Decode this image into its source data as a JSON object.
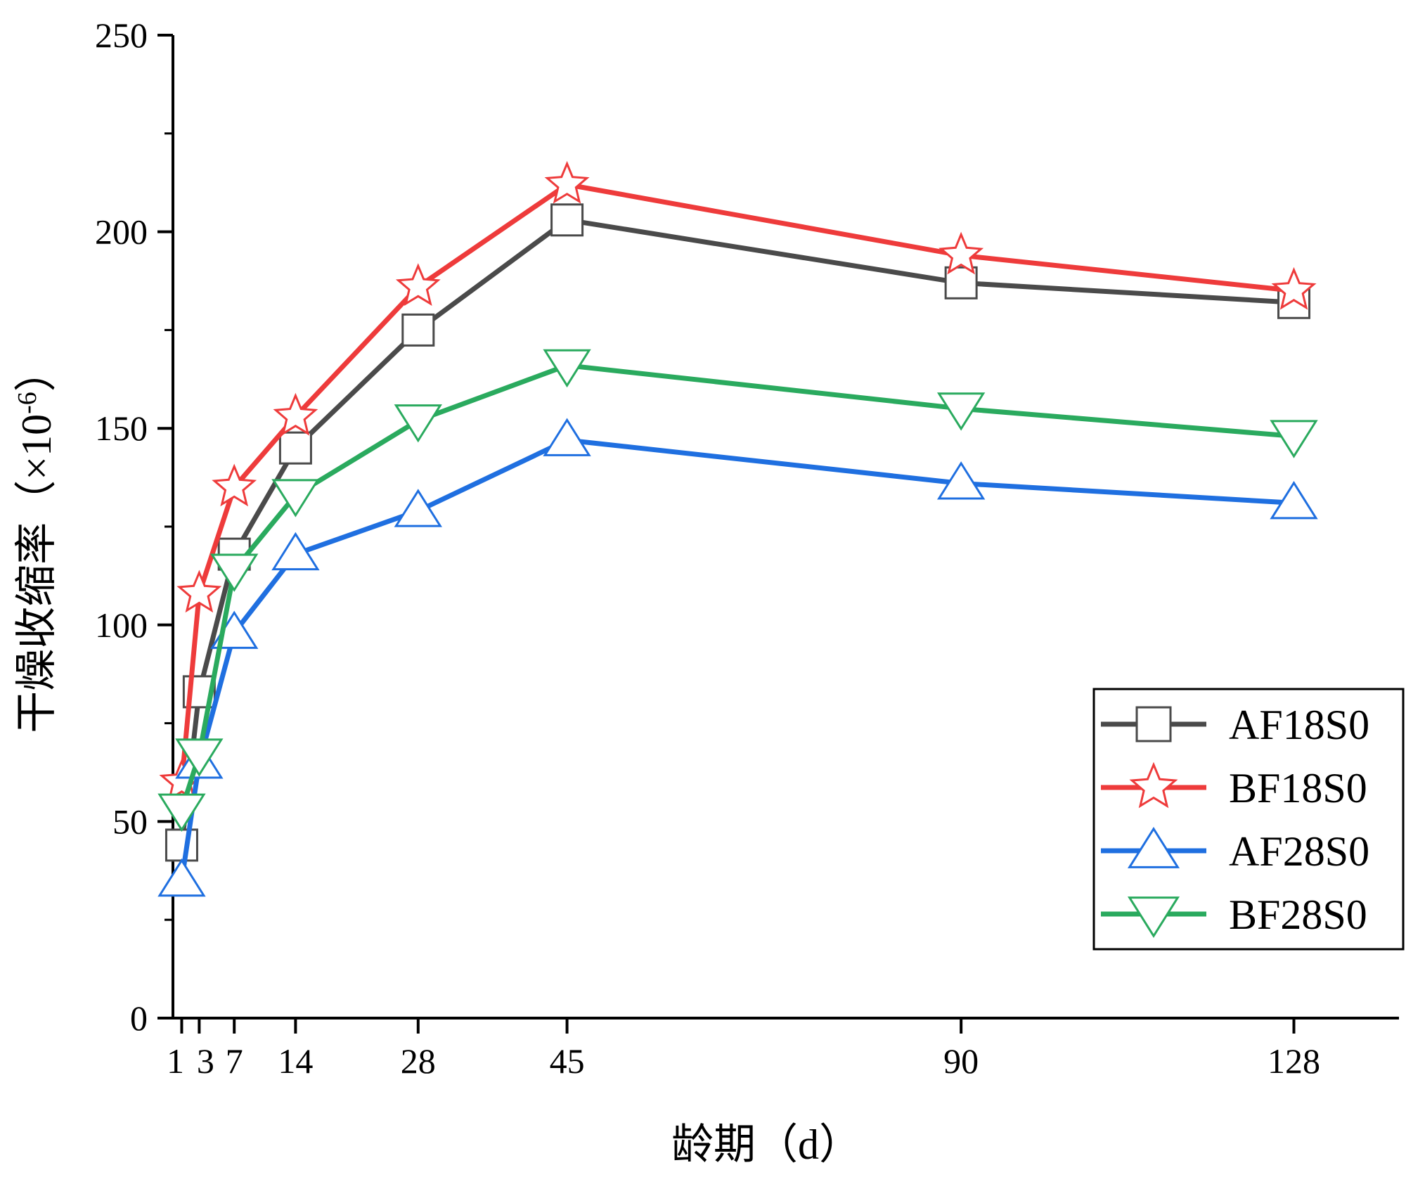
{
  "chart_data": {
    "type": "line",
    "xlabel": "龄期（d）",
    "ylabel_main": "干燥收缩率（×10",
    "ylabel_sup": "-6",
    "ylabel_close": "）",
    "x": [
      1,
      3,
      7,
      14,
      28,
      45,
      90,
      128
    ],
    "x_tick_labels": [
      "1",
      "3",
      "7",
      "14",
      "28",
      "45",
      "90",
      "128"
    ],
    "xlim": [
      0,
      140
    ],
    "ylim": [
      0,
      250
    ],
    "y_ticks": [
      0,
      50,
      100,
      150,
      200,
      250
    ],
    "grid": false,
    "legend_position": "bottom-right",
    "series": [
      {
        "name": "AF18S0",
        "color": "#4a4a4a",
        "marker": "square",
        "values": [
          44,
          83,
          118,
          145,
          175,
          203,
          187,
          182
        ]
      },
      {
        "name": "BF18S0",
        "color": "#ee3b3b",
        "marker": "star",
        "values": [
          60,
          108,
          135,
          153,
          186,
          212,
          194,
          185
        ]
      },
      {
        "name": "AF28S0",
        "color": "#1f6fe0",
        "marker": "triangle-up",
        "values": [
          35,
          65,
          98,
          118,
          129,
          147,
          136,
          131
        ]
      },
      {
        "name": "BF28S0",
        "color": "#2aaa5e",
        "marker": "triangle-down",
        "values": [
          53,
          67,
          114,
          133,
          152,
          166,
          155,
          148
        ]
      }
    ]
  }
}
